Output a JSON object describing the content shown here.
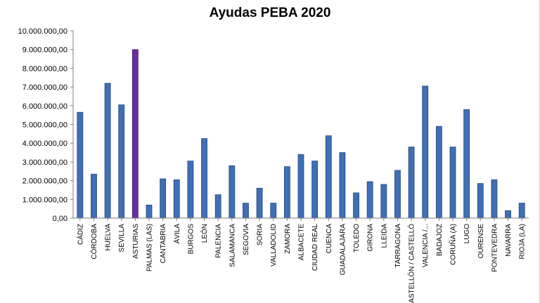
{
  "chart_data": {
    "type": "bar",
    "title": "Ayudas PEBA 2020",
    "xlabel": "",
    "ylabel": "",
    "ylim": [
      0,
      10000000
    ],
    "y_ticks": [
      {
        "value": 0,
        "label": "0,00"
      },
      {
        "value": 1000000,
        "label": "1.000.000,00"
      },
      {
        "value": 2000000,
        "label": "2.000.000,00"
      },
      {
        "value": 3000000,
        "label": "3.000.000,00"
      },
      {
        "value": 4000000,
        "label": "4.000.000,00"
      },
      {
        "value": 5000000,
        "label": "5.000.000,00"
      },
      {
        "value": 6000000,
        "label": "6.000.000,00"
      },
      {
        "value": 7000000,
        "label": "7.000.000,00"
      },
      {
        "value": 8000000,
        "label": "8.000.000,00"
      },
      {
        "value": 9000000,
        "label": "9.000.000,00"
      },
      {
        "value": 10000000,
        "label": "10.000.000,00"
      }
    ],
    "grid": false,
    "legend": "none",
    "categories": [
      "CÁDIZ",
      "CÓRDOBA",
      "HUELVA",
      "SEVILLA",
      "ASTURIAS",
      "PALMAS (LAS)",
      "CANTABRIA",
      "ÁVILA",
      "BURGOS",
      "LEÓN",
      "PALENCIA",
      "SALAMANCA",
      "SEGOVIA",
      "SORIA",
      "VALLADOLID",
      "ZAMORA",
      "ALBACETE",
      "CIUDAD REAL",
      "CUENCA",
      "GUADALAJARA",
      "TOLEDO",
      "GIRONA",
      "LLEIDA",
      "TARRAGONA",
      "CASTELLÓN / CASTELLÓ",
      "VALENCIA /...",
      "BADAJOZ",
      "CORUÑA (A)",
      "LUGO",
      "OURENSE",
      "PONTEVEDRA",
      "NAVARRA",
      "RIOJA (LA)"
    ],
    "values": [
      5650000,
      2350000,
      7200000,
      6050000,
      9000000,
      700000,
      2100000,
      2050000,
      3050000,
      4250000,
      1250000,
      2800000,
      800000,
      1600000,
      800000,
      2750000,
      3400000,
      3050000,
      4400000,
      3500000,
      1350000,
      1950000,
      1800000,
      2550000,
      3800000,
      7050000,
      4900000,
      3800000,
      5800000,
      1850000,
      2050000,
      400000,
      800000
    ],
    "highlight_index": 4,
    "colors": {
      "bar": "#3f6fb5",
      "bar_edge": "#24487e",
      "highlight": "#6a2f9e",
      "highlight_edge": "#45186e",
      "axis": "#7f7f7f"
    }
  }
}
